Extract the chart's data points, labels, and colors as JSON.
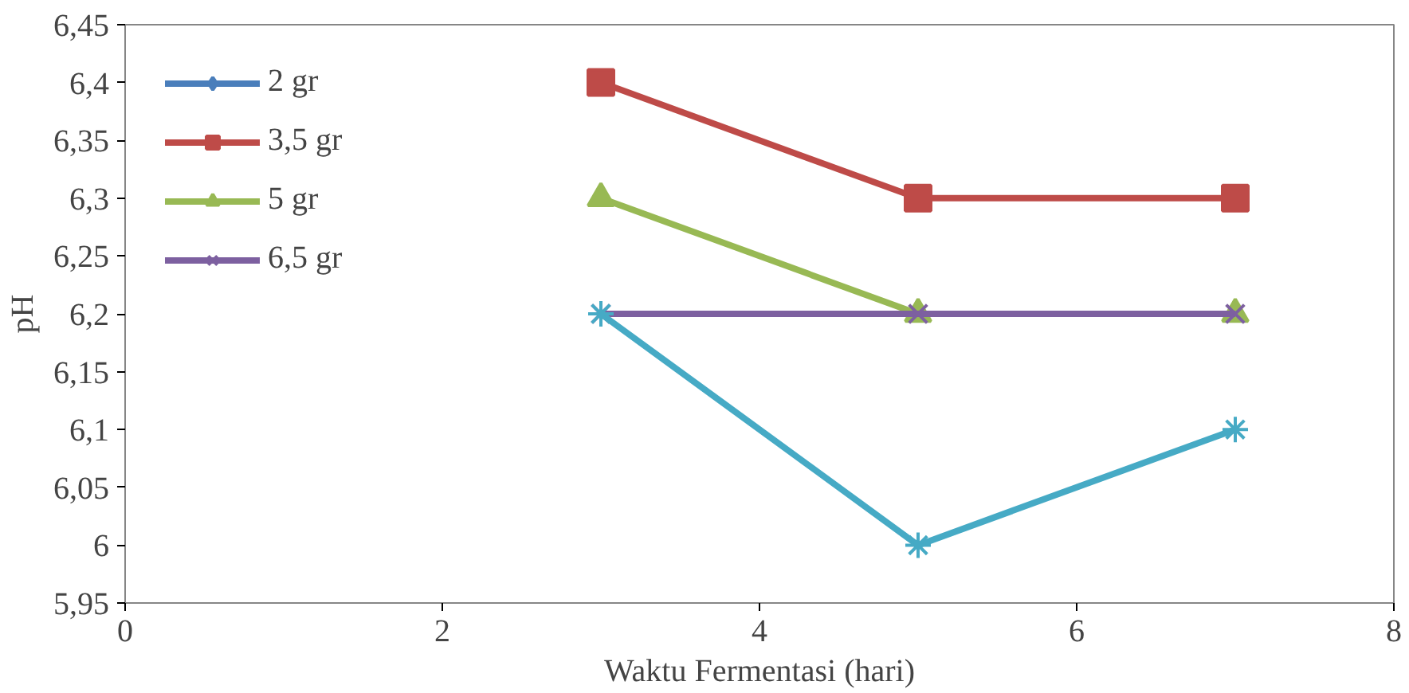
{
  "chart_data": {
    "type": "line",
    "xlabel": "Waktu Fermentasi (hari)",
    "ylabel": "pH",
    "x": [
      3,
      5,
      7
    ],
    "series": [
      {
        "name": "2 gr",
        "color": "#4a7ebb",
        "values": [
          null,
          null,
          null
        ],
        "marker": "diamond"
      },
      {
        "name": "3,5 gr",
        "color": "#be4b48",
        "values": [
          6.4,
          6.3,
          6.3
        ],
        "marker": "square"
      },
      {
        "name": "5 gr",
        "color": "#98b954",
        "values": [
          6.3,
          6.2,
          6.2
        ],
        "marker": "triangle"
      },
      {
        "name": "6,5 gr",
        "color": "#7d60a0",
        "values": [
          6.2,
          6.2,
          6.2
        ],
        "marker": "cross"
      },
      {
        "color": "#46aac5",
        "values": [
          6.2,
          6.0,
          6.1
        ],
        "marker": "cross",
        "type": "line"
      }
    ],
    "xlim": [
      0,
      8
    ],
    "xticks": [
      0,
      2,
      4,
      6,
      8
    ],
    "ylim": [
      5.95,
      6.45
    ],
    "yticks": [
      {
        "value": 5.95,
        "label": "5,95"
      },
      {
        "value": 6,
        "label": "6"
      },
      {
        "value": 6.05,
        "label": "6,05"
      },
      {
        "value": 6.1,
        "label": "6,1"
      },
      {
        "value": 6.15,
        "label": "6,15"
      },
      {
        "value": 6.2,
        "label": "6,2"
      },
      {
        "value": 6.25,
        "label": "6,25"
      },
      {
        "value": 6.3,
        "label": "6,3"
      },
      {
        "value": 6.35,
        "label": "6,35"
      },
      {
        "value": 6.4,
        "label": "6,4"
      },
      {
        "value": 6.45,
        "label": "6,45"
      }
    ],
    "grid": false,
    "legend": "top left",
    "line_style": "solid"
  }
}
